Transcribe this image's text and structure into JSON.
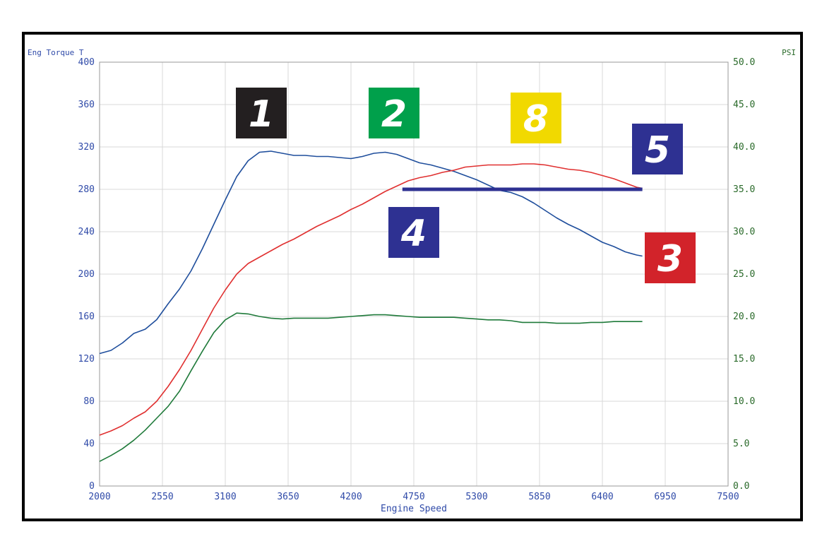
{
  "chart_data": {
    "type": "line",
    "xlabel": "Engine Speed",
    "ylabel_left": "Eng Torque T",
    "ylabel_right": "PSI",
    "xlim": [
      2000,
      7500
    ],
    "ylim_left": [
      0,
      400
    ],
    "ylim_right": [
      0,
      50
    ],
    "x_ticks": [
      2000,
      2550,
      3100,
      3650,
      4200,
      4750,
      5300,
      5850,
      6400,
      6950,
      7500
    ],
    "y_left_ticks": [
      0,
      40,
      80,
      120,
      160,
      200,
      240,
      280,
      320,
      360,
      400
    ],
    "y_right_ticks": [
      "0.0",
      "5.0",
      "10.0",
      "15.0",
      "20.0",
      "25.0",
      "30.0",
      "35.0",
      "40.0",
      "45.0",
      "50.0"
    ],
    "grid": true,
    "colors": {
      "axis_left": "#2f4aa8",
      "axis_right": "#2a6a2a",
      "grid": "#d8d8d8"
    },
    "series": [
      {
        "axis": "left",
        "color": "#1f4e9c",
        "x": [
          2000,
          2100,
          2200,
          2300,
          2400,
          2500,
          2600,
          2700,
          2800,
          2900,
          3000,
          3100,
          3200,
          3300,
          3400,
          3500,
          3600,
          3700,
          3800,
          3900,
          4000,
          4100,
          4200,
          4300,
          4400,
          4500,
          4600,
          4700,
          4800,
          4900,
          5000,
          5100,
          5200,
          5300,
          5400,
          5500,
          5600,
          5700,
          5800,
          5900,
          6000,
          6100,
          6200,
          6300,
          6400,
          6500,
          6600,
          6700,
          6750
        ],
        "y": [
          125,
          128,
          135,
          144,
          148,
          157,
          172,
          186,
          203,
          224,
          247,
          270,
          292,
          307,
          315,
          316,
          314,
          312,
          312,
          311,
          311,
          310,
          309,
          311,
          314,
          315,
          313,
          309,
          305,
          303,
          300,
          297,
          293,
          289,
          284,
          279,
          277,
          273,
          267,
          260,
          253,
          247,
          242,
          236,
          230,
          226,
          221,
          218,
          217
        ]
      },
      {
        "axis": "left",
        "color": "#e03030",
        "x": [
          2000,
          2100,
          2200,
          2300,
          2400,
          2500,
          2600,
          2700,
          2800,
          2900,
          3000,
          3100,
          3200,
          3300,
          3400,
          3500,
          3600,
          3700,
          3800,
          3900,
          4000,
          4100,
          4200,
          4300,
          4400,
          4500,
          4600,
          4700,
          4800,
          4900,
          5000,
          5100,
          5200,
          5300,
          5400,
          5500,
          5600,
          5700,
          5800,
          5900,
          6000,
          6100,
          6200,
          6300,
          6400,
          6500,
          6600,
          6700,
          6750
        ],
        "y": [
          48,
          52,
          57,
          64,
          70,
          80,
          94,
          110,
          128,
          148,
          168,
          185,
          200,
          210,
          216,
          222,
          228,
          233,
          239,
          245,
          250,
          255,
          261,
          266,
          272,
          278,
          283,
          288,
          291,
          293,
          296,
          298,
          301,
          302,
          303,
          303,
          303,
          304,
          304,
          303,
          301,
          299,
          298,
          296,
          293,
          290,
          286,
          282,
          281
        ]
      },
      {
        "axis": "right",
        "color": "#1f7a3a",
        "x": [
          2000,
          2100,
          2200,
          2300,
          2400,
          2500,
          2600,
          2700,
          2800,
          2900,
          3000,
          3100,
          3200,
          3300,
          3400,
          3500,
          3600,
          3700,
          3800,
          3900,
          4000,
          4100,
          4200,
          4300,
          4400,
          4500,
          4600,
          4700,
          4800,
          4900,
          5000,
          5100,
          5200,
          5300,
          5400,
          5500,
          5600,
          5700,
          5800,
          5900,
          6000,
          6100,
          6200,
          6300,
          6400,
          6500,
          6600,
          6700,
          6750
        ],
        "y": [
          2.9,
          3.6,
          4.4,
          5.4,
          6.6,
          8.0,
          9.4,
          11.2,
          13.6,
          15.9,
          18.1,
          19.6,
          20.4,
          20.3,
          20.0,
          19.8,
          19.7,
          19.8,
          19.8,
          19.8,
          19.8,
          19.9,
          20.0,
          20.1,
          20.2,
          20.2,
          20.1,
          20.0,
          19.9,
          19.9,
          19.9,
          19.9,
          19.8,
          19.7,
          19.6,
          19.6,
          19.5,
          19.3,
          19.3,
          19.3,
          19.2,
          19.2,
          19.2,
          19.3,
          19.3,
          19.4,
          19.4,
          19.4,
          19.4
        ]
      }
    ],
    "reference_line": {
      "axis": "left",
      "x": [
        4650,
        6750
      ],
      "y": [
        280,
        280
      ],
      "color": "#2e3192"
    },
    "annotations": [
      {
        "text": "1",
        "bg": "#231f20",
        "fg": "#ffffff"
      },
      {
        "text": "2",
        "bg": "#00a04b",
        "fg": "#ffffff"
      },
      {
        "text": "8",
        "bg": "#f1d900",
        "fg": "#ffffff"
      },
      {
        "text": "5",
        "bg": "#2e3192",
        "fg": "#ffffff"
      },
      {
        "text": "4",
        "bg": "#2e3192",
        "fg": "#ffffff"
      },
      {
        "text": "3",
        "bg": "#d2232a",
        "fg": "#ffffff"
      }
    ]
  }
}
